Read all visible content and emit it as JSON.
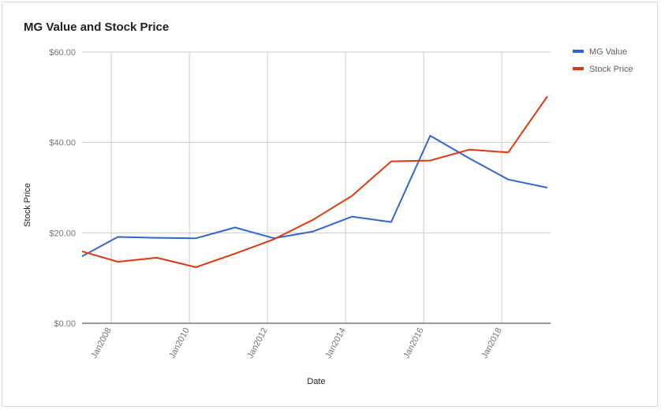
{
  "chart_data": {
    "type": "line",
    "title": "MG Value and Stock Price",
    "xlabel": "Date",
    "ylabel": "Stock Price",
    "ylim": [
      0,
      60
    ],
    "y_ticks": [
      "$0.00",
      "$20.00",
      "$40.00",
      "$60.00"
    ],
    "x_ticks": [
      "Jan2008",
      "Jan2010",
      "Jan2012",
      "Jan2014",
      "Jan2016",
      "Jan2018"
    ],
    "grid": true,
    "legend_position": "right",
    "series": [
      {
        "name": "MG Value",
        "color": "#3366cc",
        "points": [
          {
            "x": "2007-04",
            "y": 14.8
          },
          {
            "x": "2008-03",
            "y": 19.1
          },
          {
            "x": "2009-03",
            "y": 18.9
          },
          {
            "x": "2010-03",
            "y": 18.8
          },
          {
            "x": "2011-03",
            "y": 21.2
          },
          {
            "x": "2012-03",
            "y": 18.8
          },
          {
            "x": "2013-03",
            "y": 20.3
          },
          {
            "x": "2014-03",
            "y": 23.6
          },
          {
            "x": "2015-03",
            "y": 22.4
          },
          {
            "x": "2016-03",
            "y": 41.5
          },
          {
            "x": "2017-03",
            "y": 36.5
          },
          {
            "x": "2018-03",
            "y": 31.8
          },
          {
            "x": "2019-03",
            "y": 30.0
          }
        ]
      },
      {
        "name": "Stock Price",
        "color": "#dc3912",
        "points": [
          {
            "x": "2007-04",
            "y": 15.9
          },
          {
            "x": "2008-03",
            "y": 13.6
          },
          {
            "x": "2009-03",
            "y": 14.5
          },
          {
            "x": "2010-03",
            "y": 12.4
          },
          {
            "x": "2011-03",
            "y": 15.4
          },
          {
            "x": "2012-03",
            "y": 18.6
          },
          {
            "x": "2013-03",
            "y": 22.9
          },
          {
            "x": "2014-03",
            "y": 28.2
          },
          {
            "x": "2015-03",
            "y": 35.8
          },
          {
            "x": "2016-03",
            "y": 36.0
          },
          {
            "x": "2017-03",
            "y": 38.4
          },
          {
            "x": "2018-03",
            "y": 37.8
          },
          {
            "x": "2019-03",
            "y": 50.2
          }
        ]
      }
    ]
  }
}
